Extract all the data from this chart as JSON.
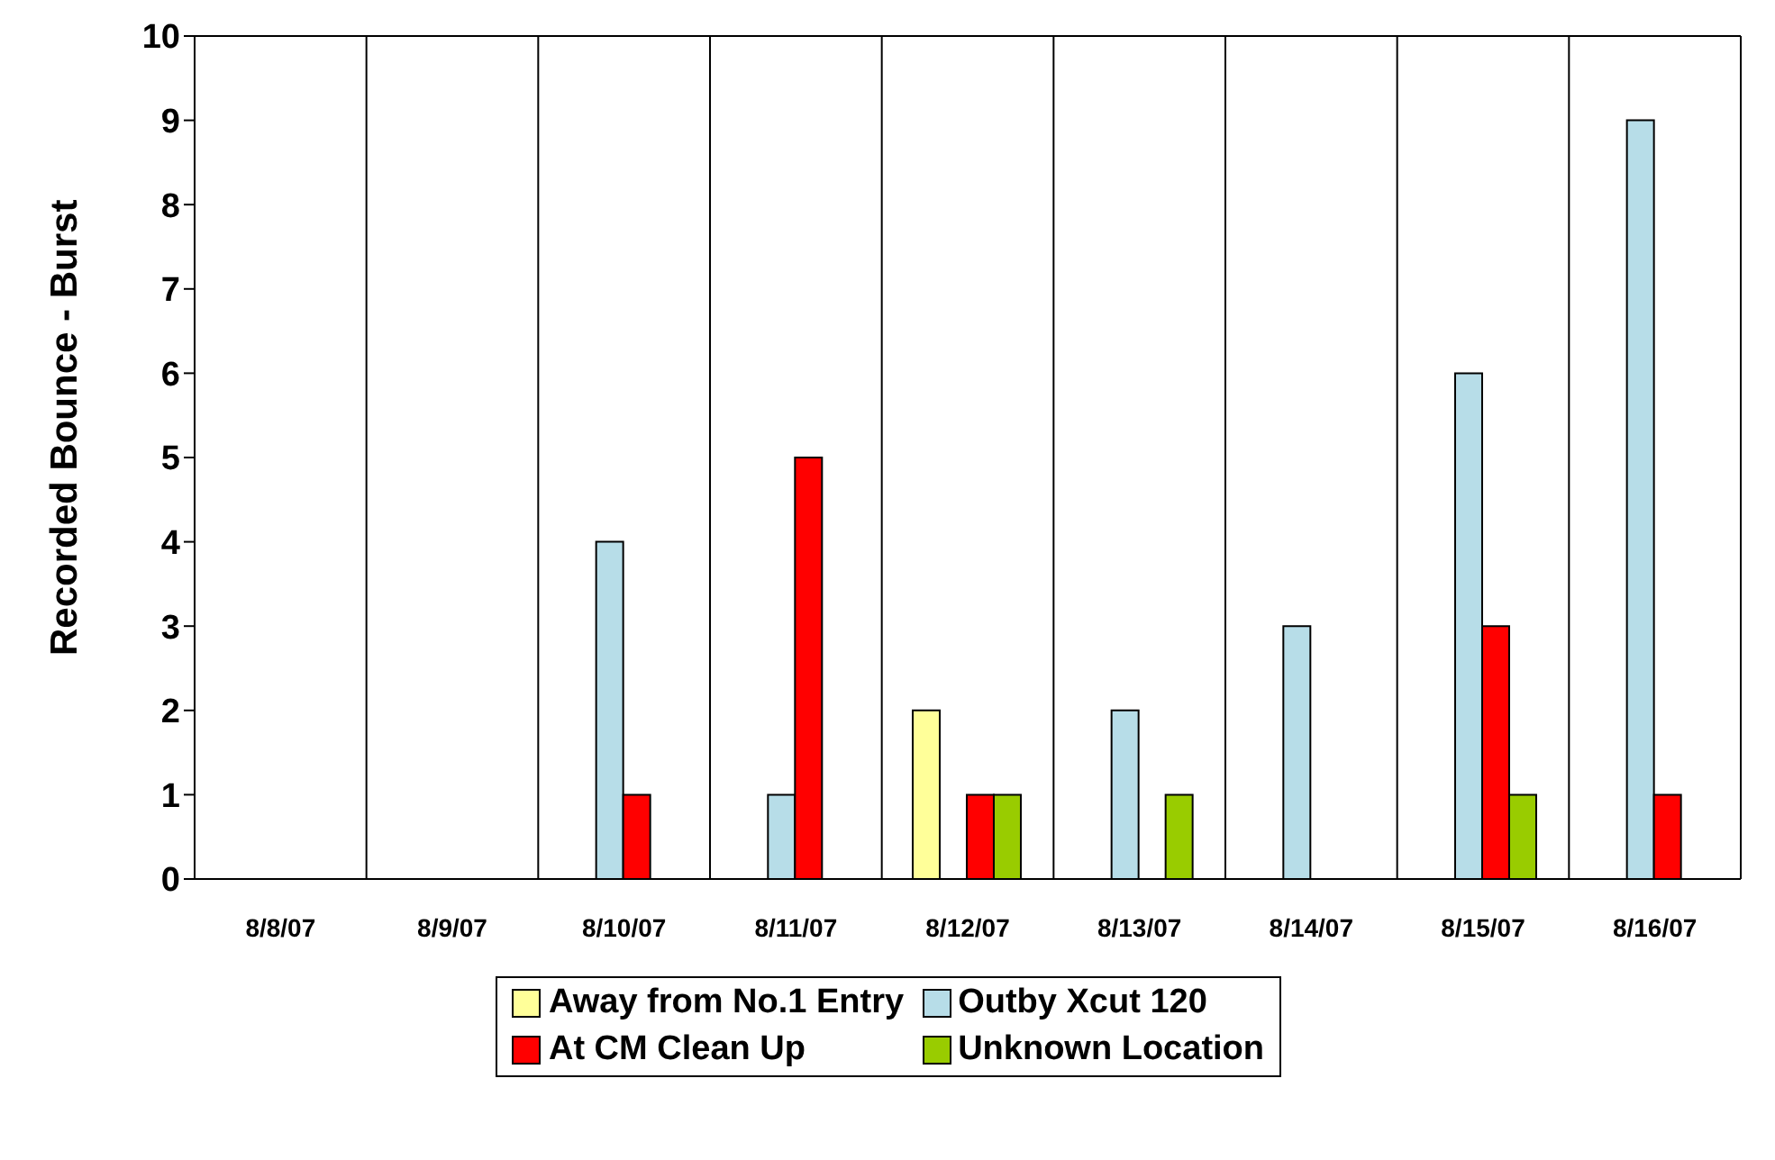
{
  "chart_data": {
    "type": "bar",
    "ylabel": "Recorded Bounce - Burst",
    "categories": [
      "8/8/07",
      "8/9/07",
      "8/10/07",
      "8/11/07",
      "8/12/07",
      "8/13/07",
      "8/14/07",
      "8/15/07",
      "8/16/07"
    ],
    "series": [
      {
        "name": "Away from No.1 Entry",
        "color": "#ffff99",
        "values": [
          0,
          0,
          0,
          0,
          2,
          0,
          0,
          0,
          0
        ]
      },
      {
        "name": "Outby Xcut 120",
        "color": "#b7dde8",
        "values": [
          0,
          0,
          4,
          1,
          0,
          2,
          3,
          6,
          9
        ]
      },
      {
        "name": "At CM Clean Up",
        "color": "#ff0000",
        "values": [
          0,
          0,
          1,
          5,
          1,
          0,
          0,
          3,
          1
        ]
      },
      {
        "name": "Unknown Location",
        "color": "#99cc00",
        "values": [
          0,
          0,
          0,
          0,
          1,
          1,
          0,
          1,
          0
        ]
      }
    ],
    "ylim": [
      0,
      10
    ],
    "yticks": [
      0,
      1,
      2,
      3,
      4,
      5,
      6,
      7,
      8,
      9,
      10
    ],
    "grid": true,
    "legend": "bottom"
  }
}
